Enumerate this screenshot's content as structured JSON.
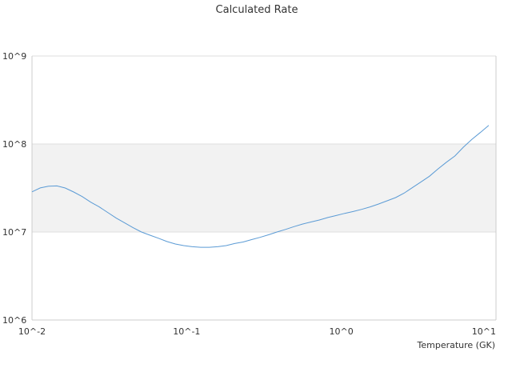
{
  "chart_data": {
    "type": "line",
    "title": "Calculated Rate",
    "xlabel": "Temperature (GK)",
    "ylabel": "",
    "x_scale": "log",
    "y_scale": "log",
    "xlim": [
      0.01,
      10
    ],
    "ylim": [
      1000000,
      1000000000
    ],
    "x_tick_labels": [
      "10^-2",
      "10^-1",
      "10^0",
      "10^1"
    ],
    "y_tick_labels": [
      "10^6",
      "10^7",
      "10^8",
      "10^9"
    ],
    "grid": true,
    "legend": "none",
    "band_ylim": [
      10000000,
      100000000
    ],
    "colors": {
      "line": "#5b9bd5",
      "band": "#f2f2f2",
      "grid": "#dddddd",
      "axis": "#cccccc"
    },
    "series": [
      {
        "x": [
          0.01,
          0.0113,
          0.0128,
          0.0145,
          0.0164,
          0.0186,
          0.0211,
          0.0239,
          0.0272,
          0.0308,
          0.035,
          0.0397,
          0.045,
          0.051,
          0.0579,
          0.0657,
          0.0745,
          0.0845,
          0.0958,
          0.1087,
          0.1233,
          0.1399,
          0.1587,
          0.18,
          0.2042,
          0.2317,
          0.2628,
          0.2981,
          0.3382,
          0.3837,
          0.4352,
          0.4937,
          0.5601,
          0.6353,
          0.7207,
          0.8176,
          0.9274,
          1.052,
          1.193,
          1.354,
          1.536,
          1.742,
          1.976,
          2.242,
          2.543,
          2.885,
          3.273,
          3.713,
          4.212,
          4.778,
          5.42,
          6.148,
          6.975,
          7.912,
          8.975
        ],
        "y": [
          28600000,
          31700000,
          33200000,
          33400000,
          31600000,
          28500000,
          25300000,
          21900000,
          19300000,
          16700000,
          14400000,
          12700000,
          11200000,
          10000000,
          9200000,
          8500000,
          7800000,
          7300000,
          7000000,
          6800000,
          6700000,
          6700000,
          6800000,
          7000000,
          7400000,
          7700000,
          8200000,
          8700000,
          9300000,
          10000000,
          10700000,
          11500000,
          12300000,
          13000000,
          13700000,
          14600000,
          15400000,
          16300000,
          17100000,
          18100000,
          19300000,
          20800000,
          22600000,
          24600000,
          27600000,
          32000000,
          37100000,
          43000000,
          52000000,
          62000000,
          73000000,
          92000000,
          113000000,
          135000000,
          163000000
        ]
      }
    ]
  }
}
